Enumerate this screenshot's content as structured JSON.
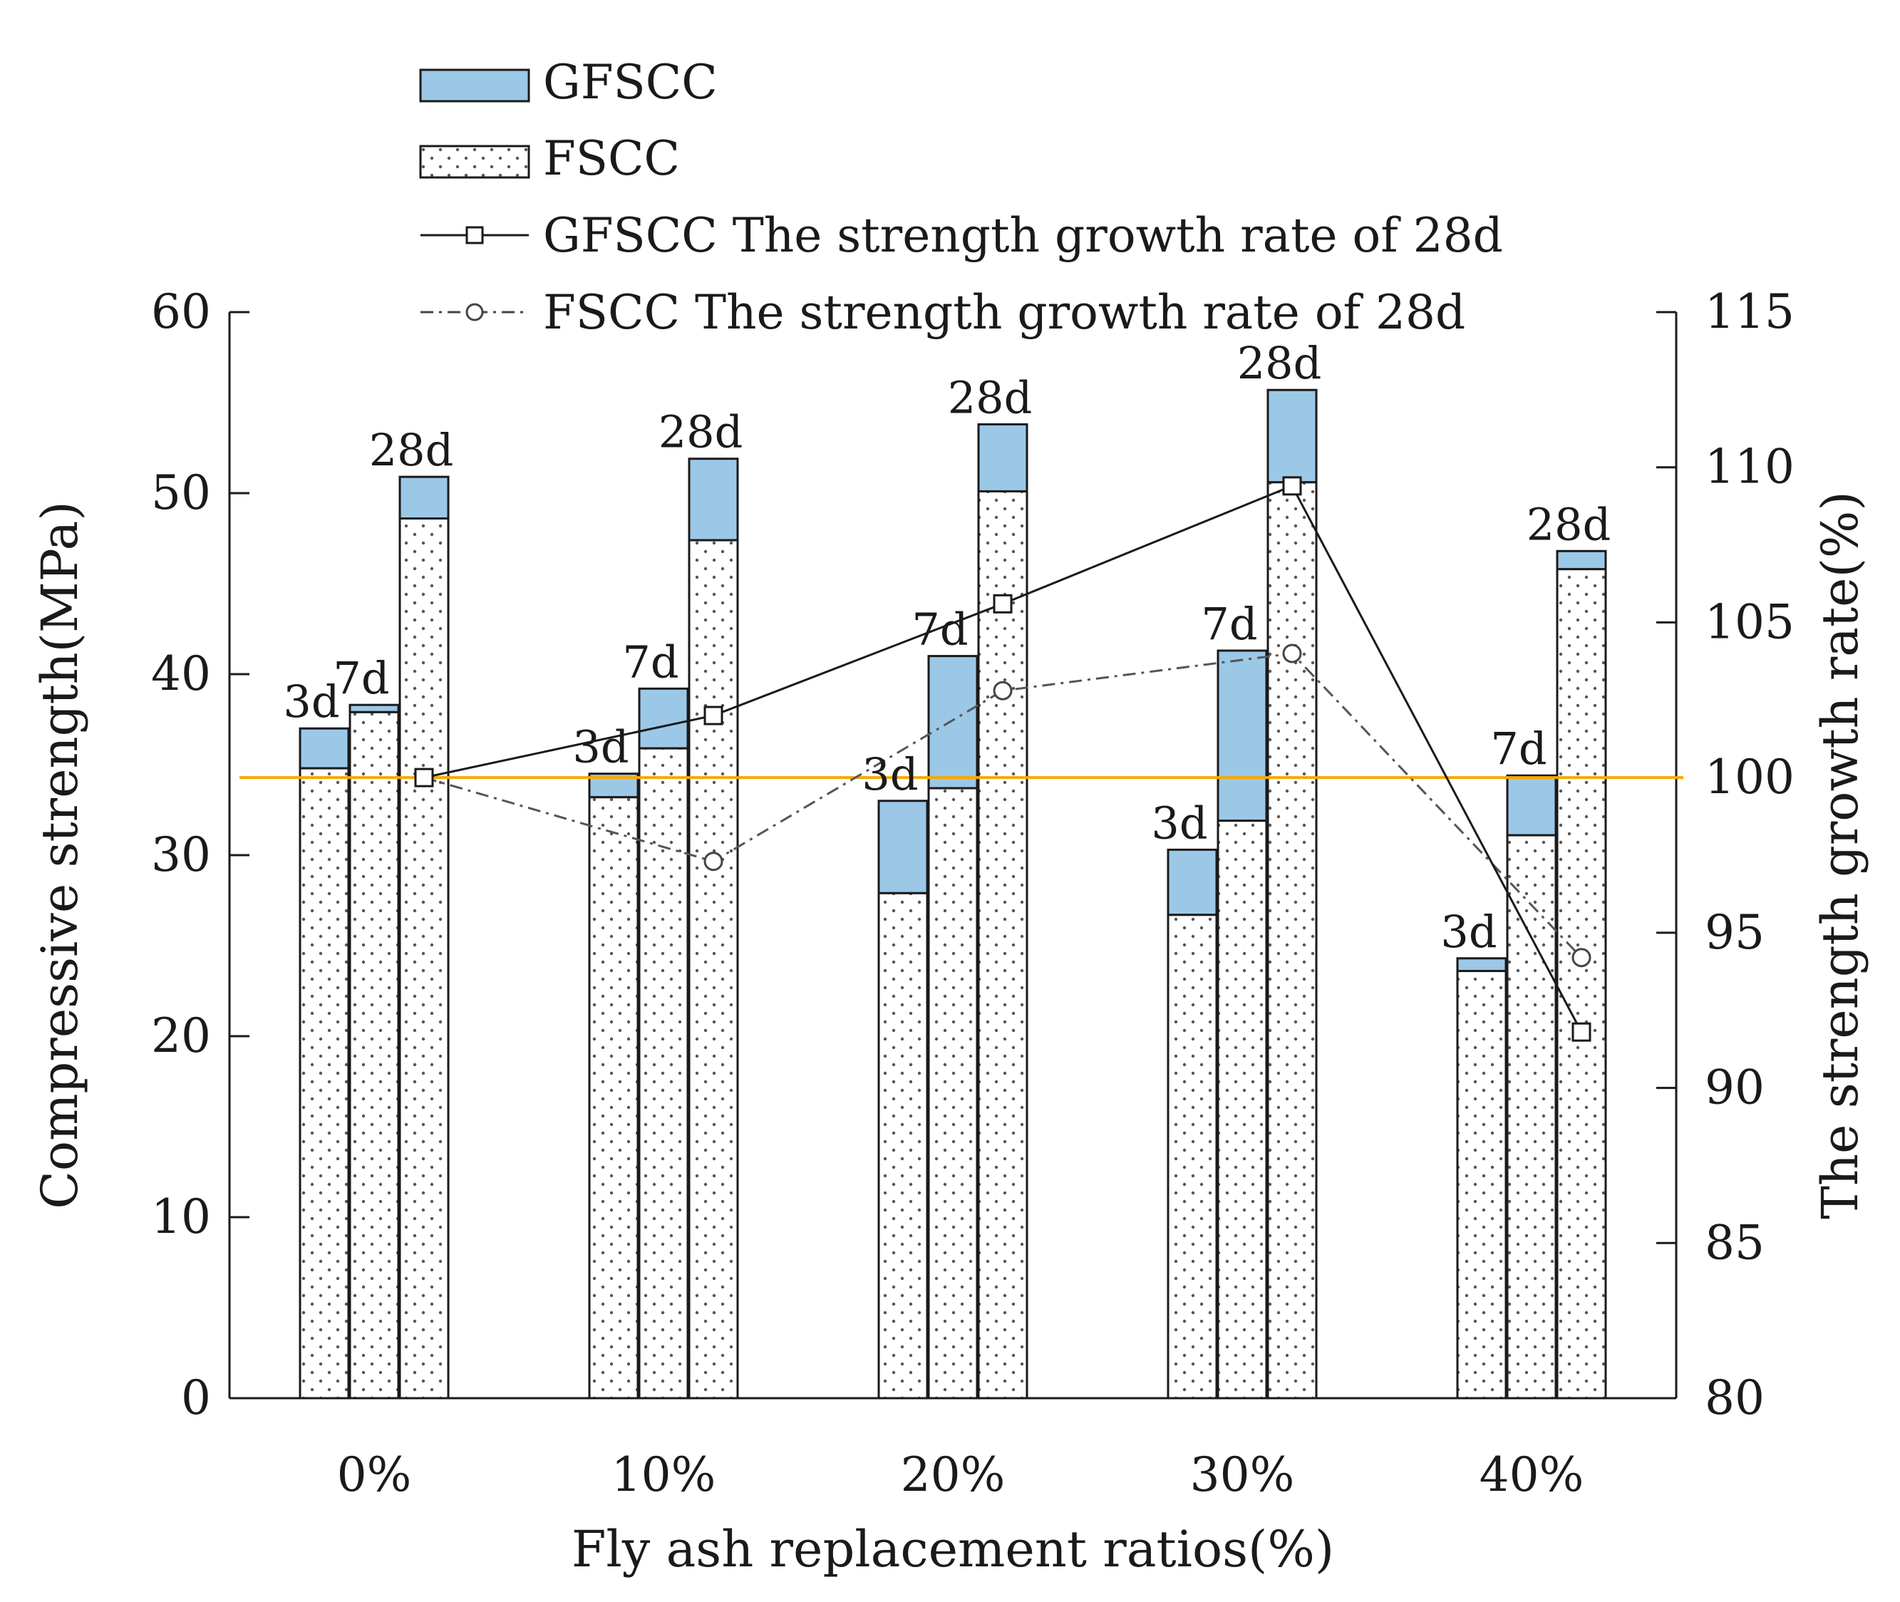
{
  "chart_data": {
    "type": "bar",
    "subtype": "grouped-stacked bar with secondary-axis lines",
    "title": "",
    "xlabel": "Fly ash replacement ratios(%)",
    "ylabel": "Compressive strength(MPa)",
    "y2label": "The strength growth rate(%)",
    "ylim": [
      0,
      60
    ],
    "y2lim": [
      80,
      115
    ],
    "yticks": [
      "0",
      "10",
      "20",
      "30",
      "40",
      "50",
      "60"
    ],
    "y2ticks": [
      "80",
      "85",
      "90",
      "95",
      "100",
      "105",
      "110",
      "115"
    ],
    "categories": [
      "0%",
      "10%",
      "20%",
      "30%",
      "40%"
    ],
    "ages": [
      "3d",
      "7d",
      "28d"
    ],
    "legend_position": "top",
    "series": [
      {
        "name": "FSCC",
        "kind": "bar-base",
        "values": [
          [
            34.8,
            37.9,
            48.6
          ],
          [
            33.2,
            35.9,
            47.4
          ],
          [
            27.9,
            33.7,
            50.1
          ],
          [
            26.7,
            31.9,
            50.6
          ],
          [
            23.6,
            31.1,
            45.8
          ]
        ]
      },
      {
        "name": "GFSCC",
        "kind": "bar-total",
        "values": [
          [
            37.0,
            38.3,
            50.9
          ],
          [
            34.5,
            39.2,
            51.9
          ],
          [
            33.0,
            41.0,
            53.8
          ],
          [
            30.3,
            41.3,
            55.7
          ],
          [
            24.3,
            34.4,
            46.8
          ]
        ]
      },
      {
        "name": "GFSCC The strength growth rate of 28d",
        "kind": "line-solid-square",
        "values": [
          100.0,
          102.0,
          105.6,
          109.4,
          91.8
        ]
      },
      {
        "name": "FSCC The strength growth rate of 28d",
        "kind": "line-dashdot-circle",
        "values": [
          100.0,
          97.3,
          102.8,
          104.0,
          94.2
        ]
      }
    ],
    "reference_line": {
      "axis": "y2",
      "value": 100,
      "color": "#f5a800"
    },
    "colors": {
      "gfscc_fill": "#9cc8e8",
      "fscc_fill": "#ffffff",
      "axis": "#1a1a1a",
      "dot": "#555555"
    }
  }
}
